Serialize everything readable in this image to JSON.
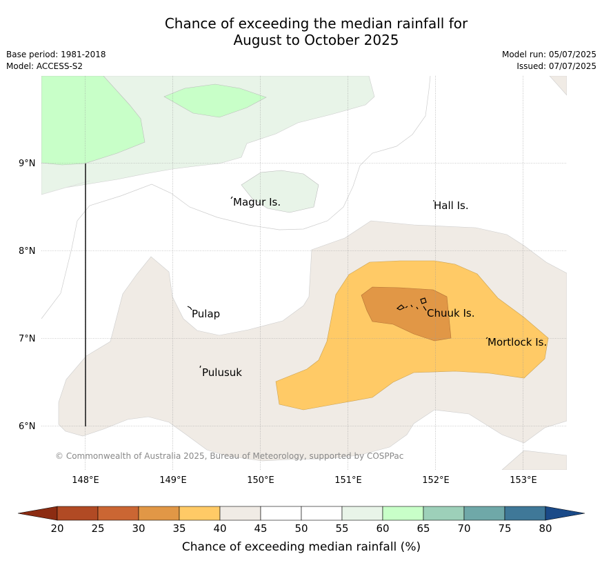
{
  "title_line1": "Chance of exceeding the median rainfall for",
  "title_line2": "August to October 2025",
  "meta_left": [
    "Base period: 1981-2018",
    "Model: ACCESS-S2"
  ],
  "meta_right": [
    "Model run: 05/07/2025",
    "Issued: 07/07/2025"
  ],
  "lon_ticks": [
    {
      "value": 148,
      "label": "148°E"
    },
    {
      "value": 149,
      "label": "149°E"
    },
    {
      "value": 150,
      "label": "150°E"
    },
    {
      "value": 151,
      "label": "151°E"
    },
    {
      "value": 152,
      "label": "152°E"
    },
    {
      "value": 153,
      "label": "153°E"
    }
  ],
  "lat_ticks": [
    {
      "value": 9,
      "label": "9°N"
    },
    {
      "value": 8,
      "label": "8°N"
    },
    {
      "value": 7,
      "label": "7°N"
    },
    {
      "value": 6,
      "label": "6°N"
    }
  ],
  "places": [
    {
      "name": "Magur Is.",
      "lon": 149.66,
      "lat": 8.57
    },
    {
      "name": "Hall Is.",
      "lon": 151.98,
      "lat": 8.54
    },
    {
      "name": "Pulap",
      "lon": 149.2,
      "lat": 7.26
    },
    {
      "name": "Chuuk Is.",
      "lon": 151.9,
      "lat": 7.27
    },
    {
      "name": "Mortlock Is.",
      "lon": 152.58,
      "lat": 6.96
    },
    {
      "name": "Pulusuk",
      "lon": 149.33,
      "lat": 6.62
    }
  ],
  "copyright": "© Commonwealth of Australia 2025, Bureau of Meteorology, supported by COSPPac",
  "colorbar": {
    "label": "Chance of exceeding median rainfall (%)",
    "ticks": [
      "20",
      "25",
      "30",
      "35",
      "40",
      "45",
      "50",
      "55",
      "60",
      "65",
      "70",
      "75",
      "80"
    ],
    "colors": [
      "#b14a24",
      "#cb6633",
      "#e19746",
      "#ffca66",
      "#f0ebe5",
      "#ffffff",
      "#ffffff",
      "#e8f4e8",
      "#c8ffc8",
      "#9dd0b9",
      "#6fa8a8",
      "#3f7898"
    ],
    "under_color": "#8c2c12",
    "over_color": "#1a4a88"
  },
  "legend_colors": {
    "35-40": "#ffca66",
    "30-35": "#e19746",
    "40-45": "#f0ebe5",
    "55-60": "#e8f4e8",
    "60-65": "#c8ffc8"
  }
}
